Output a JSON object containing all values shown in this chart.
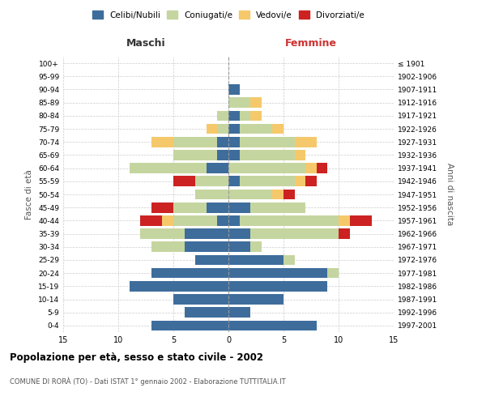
{
  "age_groups": [
    "0-4",
    "5-9",
    "10-14",
    "15-19",
    "20-24",
    "25-29",
    "30-34",
    "35-39",
    "40-44",
    "45-49",
    "50-54",
    "55-59",
    "60-64",
    "65-69",
    "70-74",
    "75-79",
    "80-84",
    "85-89",
    "90-94",
    "95-99",
    "100+"
  ],
  "birth_years": [
    "1997-2001",
    "1992-1996",
    "1987-1991",
    "1982-1986",
    "1977-1981",
    "1972-1976",
    "1967-1971",
    "1962-1966",
    "1957-1961",
    "1952-1956",
    "1947-1951",
    "1942-1946",
    "1937-1941",
    "1932-1936",
    "1927-1931",
    "1922-1926",
    "1917-1921",
    "1912-1916",
    "1907-1911",
    "1902-1906",
    "≤ 1901"
  ],
  "male_celibi": [
    7,
    4,
    5,
    9,
    7,
    3,
    4,
    4,
    1,
    2,
    0,
    0,
    2,
    1,
    1,
    0,
    0,
    0,
    0,
    0,
    0
  ],
  "male_coniugati": [
    0,
    0,
    0,
    0,
    0,
    0,
    3,
    4,
    4,
    3,
    3,
    3,
    7,
    4,
    4,
    1,
    1,
    0,
    0,
    0,
    0
  ],
  "male_vedovi": [
    0,
    0,
    0,
    0,
    0,
    0,
    0,
    0,
    1,
    0,
    0,
    0,
    0,
    0,
    2,
    1,
    0,
    0,
    0,
    0,
    0
  ],
  "male_divorziati": [
    0,
    0,
    0,
    0,
    0,
    0,
    0,
    0,
    2,
    2,
    0,
    2,
    0,
    0,
    0,
    0,
    0,
    0,
    0,
    0,
    0
  ],
  "female_celibi": [
    8,
    2,
    5,
    9,
    9,
    5,
    2,
    2,
    1,
    2,
    0,
    1,
    0,
    1,
    1,
    1,
    1,
    0,
    1,
    0,
    0
  ],
  "female_coniugati": [
    0,
    0,
    0,
    0,
    1,
    1,
    1,
    8,
    9,
    5,
    4,
    5,
    7,
    5,
    5,
    3,
    1,
    2,
    0,
    0,
    0
  ],
  "female_vedovi": [
    0,
    0,
    0,
    0,
    0,
    0,
    0,
    0,
    1,
    0,
    1,
    1,
    1,
    1,
    2,
    1,
    1,
    1,
    0,
    0,
    0
  ],
  "female_divorziati": [
    0,
    0,
    0,
    0,
    0,
    0,
    0,
    1,
    2,
    0,
    1,
    1,
    1,
    0,
    0,
    0,
    0,
    0,
    0,
    0,
    0
  ],
  "color_celibi": "#3E6D9C",
  "color_coniugati": "#C5D5A0",
  "color_vedovi": "#F5C96B",
  "color_divorziati": "#CC2222",
  "title": "Popolazione per età, sesso e stato civile - 2002",
  "subtitle": "COMUNE DI RORÀ (TO) - Dati ISTAT 1° gennaio 2002 - Elaborazione TUTTITALIA.IT",
  "xlabel_left": "Maschi",
  "xlabel_right": "Femmine",
  "ylabel_left": "Fasce di età",
  "ylabel_right": "Anni di nascita",
  "xlim": 15,
  "bg_color": "#FFFFFF",
  "grid_color": "#CCCCCC"
}
